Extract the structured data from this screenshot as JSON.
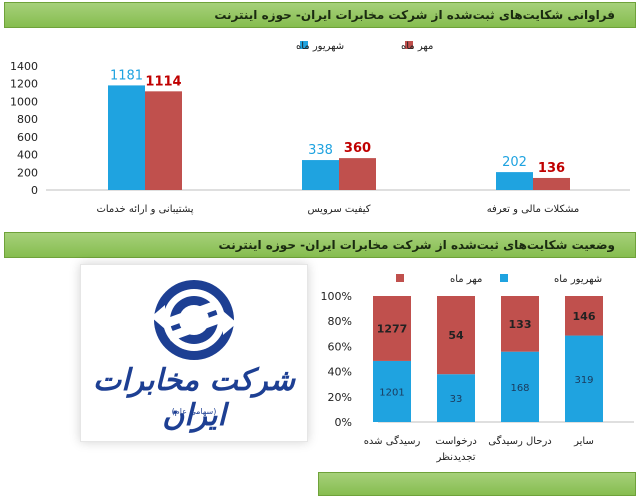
{
  "banner1": {
    "title": "فراوانی شکایت‌های ثبت‌شده از شرکت مخابرات ایران- حوزه اینترنت"
  },
  "banner2": {
    "title": "وضعیت شکایت‌های ثبت‌شده از شرکت مخابرات ایران- حوزه اینترنت"
  },
  "logo": {
    "name": "شرکت مخابرات ایران",
    "sub": "(سهامی عام)"
  },
  "colors": {
    "blue": "#1fa3e0",
    "red": "#c0504d",
    "value_blue": "#1fa3e0",
    "value_red": "#c00000"
  },
  "chart_data": [
    {
      "type": "bar",
      "title": "",
      "legend": "top-center",
      "categories": [
        "پشتیبانی و ارائه خدمات",
        "کیفیت سرویس",
        "مشکلات مالی و تعرفه"
      ],
      "series": [
        {
          "name": "شهریور ماه",
          "values": [
            1181,
            338,
            202
          ]
        },
        {
          "name": "مهر ماه",
          "values": [
            1114,
            360,
            136
          ]
        }
      ],
      "yticks": [
        "0",
        "200",
        "400",
        "600",
        "800",
        "1000",
        "1200",
        "1400"
      ],
      "ylim": [
        0,
        1400
      ],
      "grid": false
    },
    {
      "type": "bar",
      "stacked": "percent",
      "legend": "top-center",
      "categories": [
        [
          "رسیدگی شده"
        ],
        [
          "درخواست",
          "تجدیدنظر"
        ],
        [
          "درحال رسیدگی"
        ],
        [
          "سایر"
        ]
      ],
      "series": [
        {
          "name": "شهریور ماه",
          "values": [
            1201,
            33,
            168,
            319
          ]
        },
        {
          "name": "مهر ماه",
          "values": [
            1277,
            54,
            133,
            146
          ]
        }
      ],
      "yticks": [
        "0%",
        "20%",
        "40%",
        "60%",
        "80%",
        "100%"
      ],
      "ylim": [
        0,
        100
      ],
      "grid": false
    }
  ]
}
